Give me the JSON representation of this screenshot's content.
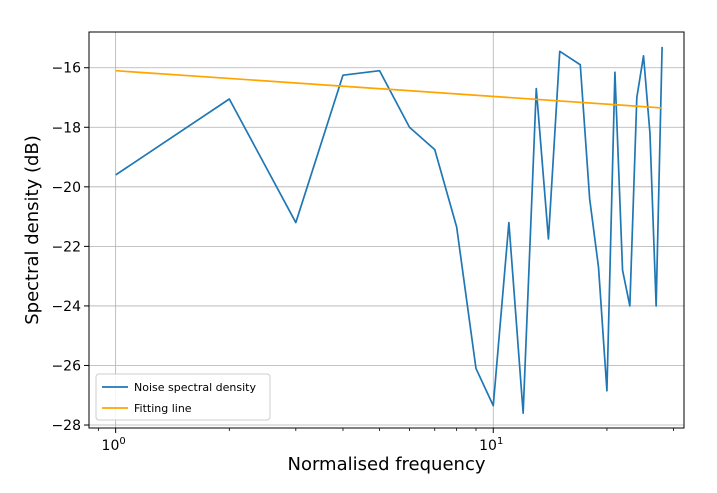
{
  "chart_data": {
    "type": "line",
    "xlabel": "Normalised frequency",
    "ylabel": "Spectral density (dB)",
    "xscale": "log",
    "xlim": [
      0.85,
      32
    ],
    "ylim": [
      -28.1,
      -14.8
    ],
    "grid": true,
    "legend_position": "lower-left",
    "x_ticks": [
      {
        "value": 1,
        "base": "10",
        "exp": "0"
      },
      {
        "value": 10,
        "base": "10",
        "exp": "1"
      }
    ],
    "y_ticks": [
      {
        "value": -28,
        "label": "−28"
      },
      {
        "value": -26,
        "label": "−26"
      },
      {
        "value": -24,
        "label": "−24"
      },
      {
        "value": -22,
        "label": "−22"
      },
      {
        "value": -20,
        "label": "−20"
      },
      {
        "value": -18,
        "label": "−18"
      },
      {
        "value": -16,
        "label": "−16"
      }
    ],
    "series": [
      {
        "name": "Noise spectral density",
        "color": "#1f77b4",
        "x": [
          1,
          2,
          3,
          4,
          5,
          6,
          7,
          8,
          9,
          10,
          11,
          12,
          13,
          14,
          15,
          17,
          18,
          19,
          20,
          21,
          22,
          23,
          24,
          25,
          26,
          27,
          28
        ],
        "y": [
          -19.6,
          -17.05,
          -21.2,
          -16.25,
          -16.1,
          -18.0,
          -18.75,
          -21.35,
          -26.1,
          -27.35,
          -21.2,
          -27.6,
          -16.7,
          -21.75,
          -15.45,
          -15.9,
          -20.4,
          -22.7,
          -26.85,
          -16.15,
          -22.8,
          -24.0,
          -17.0,
          -15.6,
          -18.2,
          -24.0,
          -15.3
        ]
      },
      {
        "name": "Fitting line",
        "color": "#ffa500",
        "x": [
          1,
          28
        ],
        "y": [
          -16.1,
          -17.35
        ]
      }
    ]
  }
}
